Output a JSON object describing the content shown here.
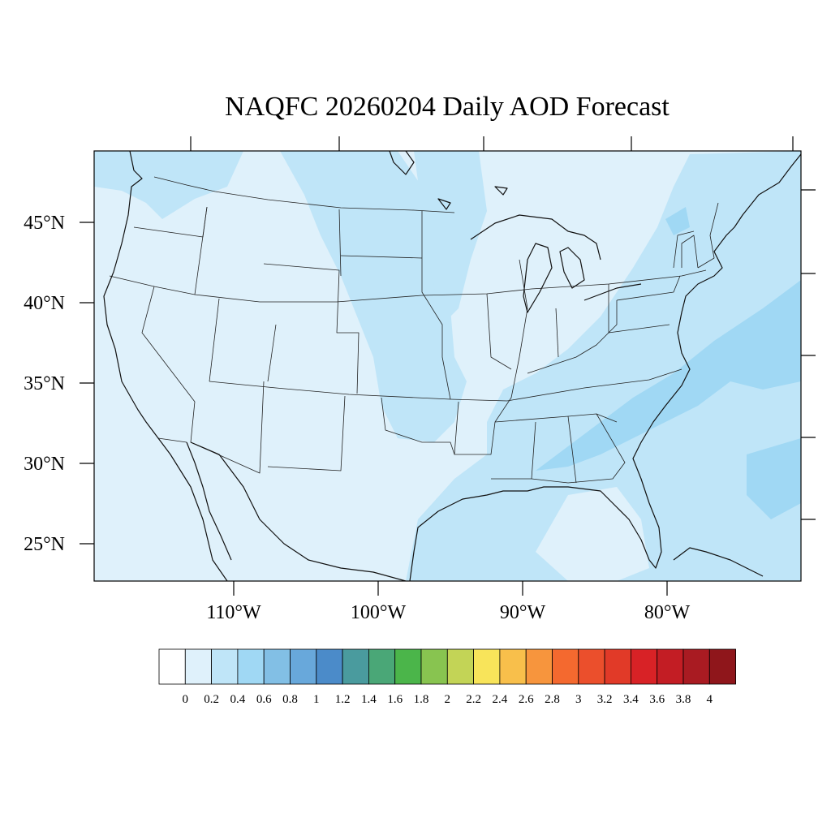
{
  "title": "NAQFC 20260204 Daily AOD Forecast",
  "map": {
    "latitude_labels": [
      "45°N",
      "40°N",
      "35°N",
      "30°N",
      "25°N"
    ],
    "longitude_labels": [
      "110°W",
      "100°W",
      "90°W",
      "80°W"
    ],
    "background_color": "#dff1fb"
  },
  "colorbar": {
    "colors": [
      "#ffffff",
      "#dff1fb",
      "#bfe5f8",
      "#a0d8f4",
      "#82bfe5",
      "#68a8db",
      "#4b8bc9",
      "#4a9b9e",
      "#4aa777",
      "#4bb54a",
      "#88c450",
      "#c3d456",
      "#f8e45a",
      "#f8bf4b",
      "#f7953d",
      "#f4692f",
      "#eb4f2c",
      "#e13a28",
      "#d82226",
      "#c31d24",
      "#a91b22",
      "#8f161b"
    ],
    "labels": [
      "0",
      "0.2",
      "0.4",
      "0.6",
      "0.8",
      "1",
      "1.2",
      "1.4",
      "1.6",
      "1.8",
      "2",
      "2.2",
      "2.4",
      "2.6",
      "2.8",
      "3",
      "3.2",
      "3.4",
      "3.6",
      "3.8",
      "4"
    ]
  }
}
